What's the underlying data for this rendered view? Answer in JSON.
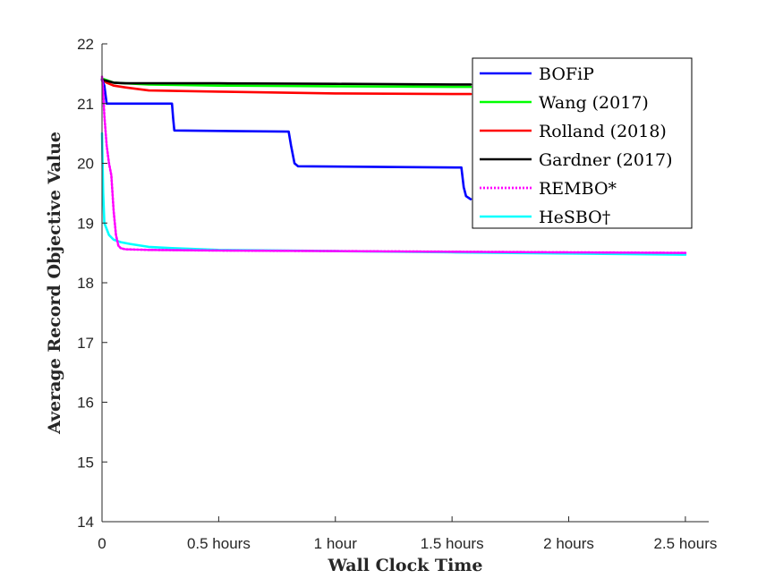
{
  "chart_data": {
    "type": "line",
    "title": "",
    "xlabel": "Wall Clock Time",
    "ylabel": "Average Record Objective Value",
    "xlim": [
      0,
      2.6
    ],
    "ylim": [
      14,
      22
    ],
    "xticks": [
      {
        "value": 0,
        "label": "0"
      },
      {
        "value": 0.5,
        "label": "0.5 hours"
      },
      {
        "value": 1,
        "label": "1 hour"
      },
      {
        "value": 1.5,
        "label": "1.5 hours"
      },
      {
        "value": 2,
        "label": "2 hours"
      },
      {
        "value": 2.5,
        "label": "2.5 hours"
      }
    ],
    "yticks": [
      {
        "value": 14,
        "label": "14"
      },
      {
        "value": 15,
        "label": "15"
      },
      {
        "value": 16,
        "label": "16"
      },
      {
        "value": 17,
        "label": "17"
      },
      {
        "value": 18,
        "label": "18"
      },
      {
        "value": 19,
        "label": "19"
      },
      {
        "value": 20,
        "label": "20"
      },
      {
        "value": 21,
        "label": "21"
      },
      {
        "value": 22,
        "label": "22"
      }
    ],
    "grid": false,
    "legend": "top-right",
    "series": [
      {
        "name": "BOFiP",
        "color": "#0000ff",
        "style": "solid",
        "x": [
          0,
          0.01,
          0.02,
          0.3,
          0.305,
          0.31,
          0.8,
          0.81,
          0.825,
          0.84,
          1.54,
          1.55,
          1.56,
          1.58
        ],
        "y": [
          21.4,
          21.3,
          21.0,
          21.0,
          20.75,
          20.55,
          20.53,
          20.3,
          20.0,
          19.95,
          19.93,
          19.6,
          19.45,
          19.4
        ]
      },
      {
        "name": "Wang (2017)",
        "color": "#00ff00",
        "style": "solid",
        "x": [
          0,
          0.05,
          0.2,
          0.5,
          1.0,
          1.5,
          1.58
        ],
        "y": [
          21.42,
          21.35,
          21.32,
          21.3,
          21.29,
          21.28,
          21.28
        ]
      },
      {
        "name": "Rolland (2018)",
        "color": "#ff0000",
        "style": "solid",
        "x": [
          0,
          0.02,
          0.05,
          0.1,
          0.2,
          0.5,
          1.0,
          1.5,
          1.58
        ],
        "y": [
          21.4,
          21.35,
          21.3,
          21.27,
          21.22,
          21.2,
          21.17,
          21.16,
          21.16
        ]
      },
      {
        "name": "Gardner (2017)",
        "color": "#000000",
        "style": "solid",
        "x": [
          0,
          0.02,
          0.05,
          0.1,
          0.5,
          1.0,
          1.5,
          1.58
        ],
        "y": [
          21.4,
          21.38,
          21.35,
          21.34,
          21.34,
          21.33,
          21.32,
          21.32
        ]
      },
      {
        "name": "REMBO*",
        "color": "#ff00ff",
        "style": "dotted",
        "x": [
          0,
          0.005,
          0.01,
          0.02,
          0.03,
          0.04,
          0.05,
          0.06,
          0.07,
          0.08,
          0.1,
          0.2,
          0.5,
          1.0,
          1.5,
          2.0,
          2.5
        ],
        "y": [
          21.45,
          21.2,
          20.8,
          20.3,
          20.0,
          19.8,
          19.2,
          18.8,
          18.62,
          18.58,
          18.56,
          18.55,
          18.54,
          18.53,
          18.52,
          18.51,
          18.5
        ]
      },
      {
        "name": "HeSBO†",
        "color": "#00ffff",
        "style": "solid",
        "x": [
          0,
          0.005,
          0.01,
          0.02,
          0.03,
          0.05,
          0.08,
          0.12,
          0.2,
          0.3,
          0.5,
          1.0,
          1.5,
          2.0,
          2.5
        ],
        "y": [
          20.5,
          19.5,
          19.0,
          18.9,
          18.8,
          18.72,
          18.68,
          18.65,
          18.6,
          18.58,
          18.55,
          18.53,
          18.51,
          18.49,
          18.47
        ]
      }
    ]
  }
}
